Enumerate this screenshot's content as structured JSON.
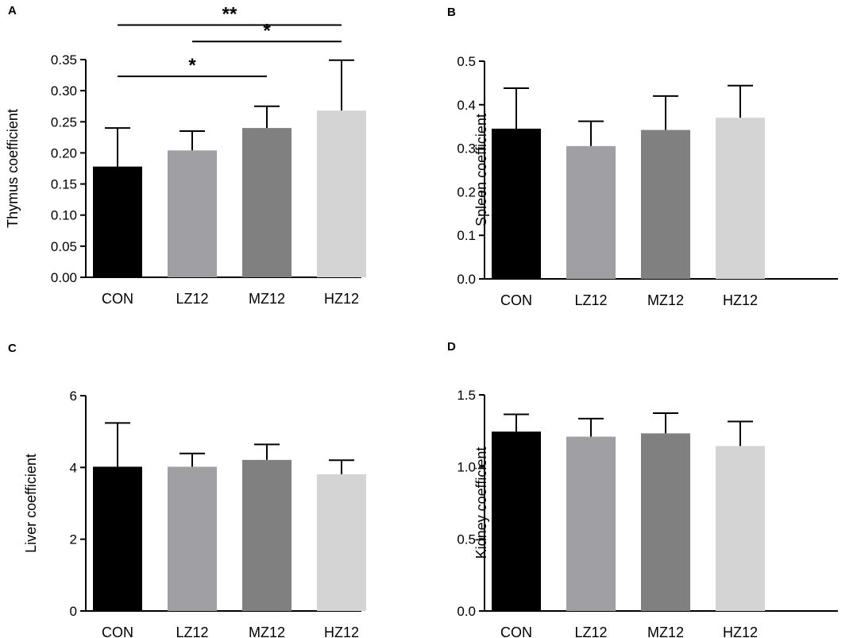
{
  "colors": {
    "CON": "#000000",
    "LZ12": "#a0a0a4",
    "MZ12": "#808080",
    "HZ12": "#d4d4d4",
    "axis": "#000000"
  },
  "chart_data": [
    {
      "panel": "A",
      "type": "bar",
      "title": "",
      "xlabel": "",
      "ylabel": "Thymus coefficient",
      "categories": [
        "CON",
        "LZ12",
        "MZ12",
        "HZ12"
      ],
      "values": [
        0.178,
        0.204,
        0.24,
        0.268
      ],
      "errors": [
        0.062,
        0.031,
        0.035,
        0.081
      ],
      "ylim": [
        0,
        0.35
      ],
      "yticks": [
        0.0,
        0.05,
        0.1,
        0.15,
        0.2,
        0.25,
        0.3,
        0.35
      ],
      "ytick_labels": [
        "0.00",
        "0.05",
        "0.10",
        "0.15",
        "0.20",
        "0.25",
        "0.30",
        "0.35"
      ],
      "significance": [
        {
          "from": "CON",
          "to": "HZ12",
          "label": "**",
          "level": 0.4055
        },
        {
          "from": "LZ12",
          "to": "HZ12",
          "label": "*",
          "level": 0.379
        },
        {
          "from": "CON",
          "to": "MZ12",
          "label": "*",
          "level": 0.323
        }
      ]
    },
    {
      "panel": "B",
      "type": "bar",
      "title": "",
      "xlabel": "",
      "ylabel": "Spleen coefficient",
      "categories": [
        "CON",
        "LZ12",
        "MZ12",
        "HZ12"
      ],
      "values": [
        0.345,
        0.305,
        0.342,
        0.37
      ],
      "errors": [
        0.093,
        0.057,
        0.078,
        0.074
      ],
      "ylim": [
        0,
        0.5
      ],
      "yticks": [
        0.0,
        0.1,
        0.2,
        0.3,
        0.4,
        0.5
      ],
      "ytick_labels": [
        "0.0",
        "0.1",
        "0.2",
        "0.3",
        "0.4",
        "0.5"
      ],
      "significance": []
    },
    {
      "panel": "C",
      "type": "bar",
      "title": "",
      "xlabel": "",
      "ylabel": "Liver coefficient",
      "categories": [
        "CON",
        "LZ12",
        "MZ12",
        "HZ12"
      ],
      "values": [
        4.02,
        4.02,
        4.21,
        3.81
      ],
      "errors": [
        1.22,
        0.37,
        0.43,
        0.39
      ],
      "ylim": [
        0,
        6
      ],
      "yticks": [
        0,
        2,
        4,
        6
      ],
      "ytick_labels": [
        "0",
        "2",
        "4",
        "6"
      ],
      "significance": []
    },
    {
      "panel": "D",
      "type": "bar",
      "title": "",
      "xlabel": "",
      "ylabel": "Kidney coefficient",
      "categories": [
        "CON",
        "LZ12",
        "MZ12",
        "HZ12"
      ],
      "values": [
        1.245,
        1.21,
        1.233,
        1.145
      ],
      "errors": [
        0.12,
        0.125,
        0.14,
        0.17
      ],
      "ylim": [
        0,
        1.5
      ],
      "yticks": [
        0.0,
        0.5,
        1.0,
        1.5
      ],
      "ytick_labels": [
        "0.0",
        "0.5",
        "1.0",
        "1.5"
      ],
      "significance": []
    }
  ]
}
